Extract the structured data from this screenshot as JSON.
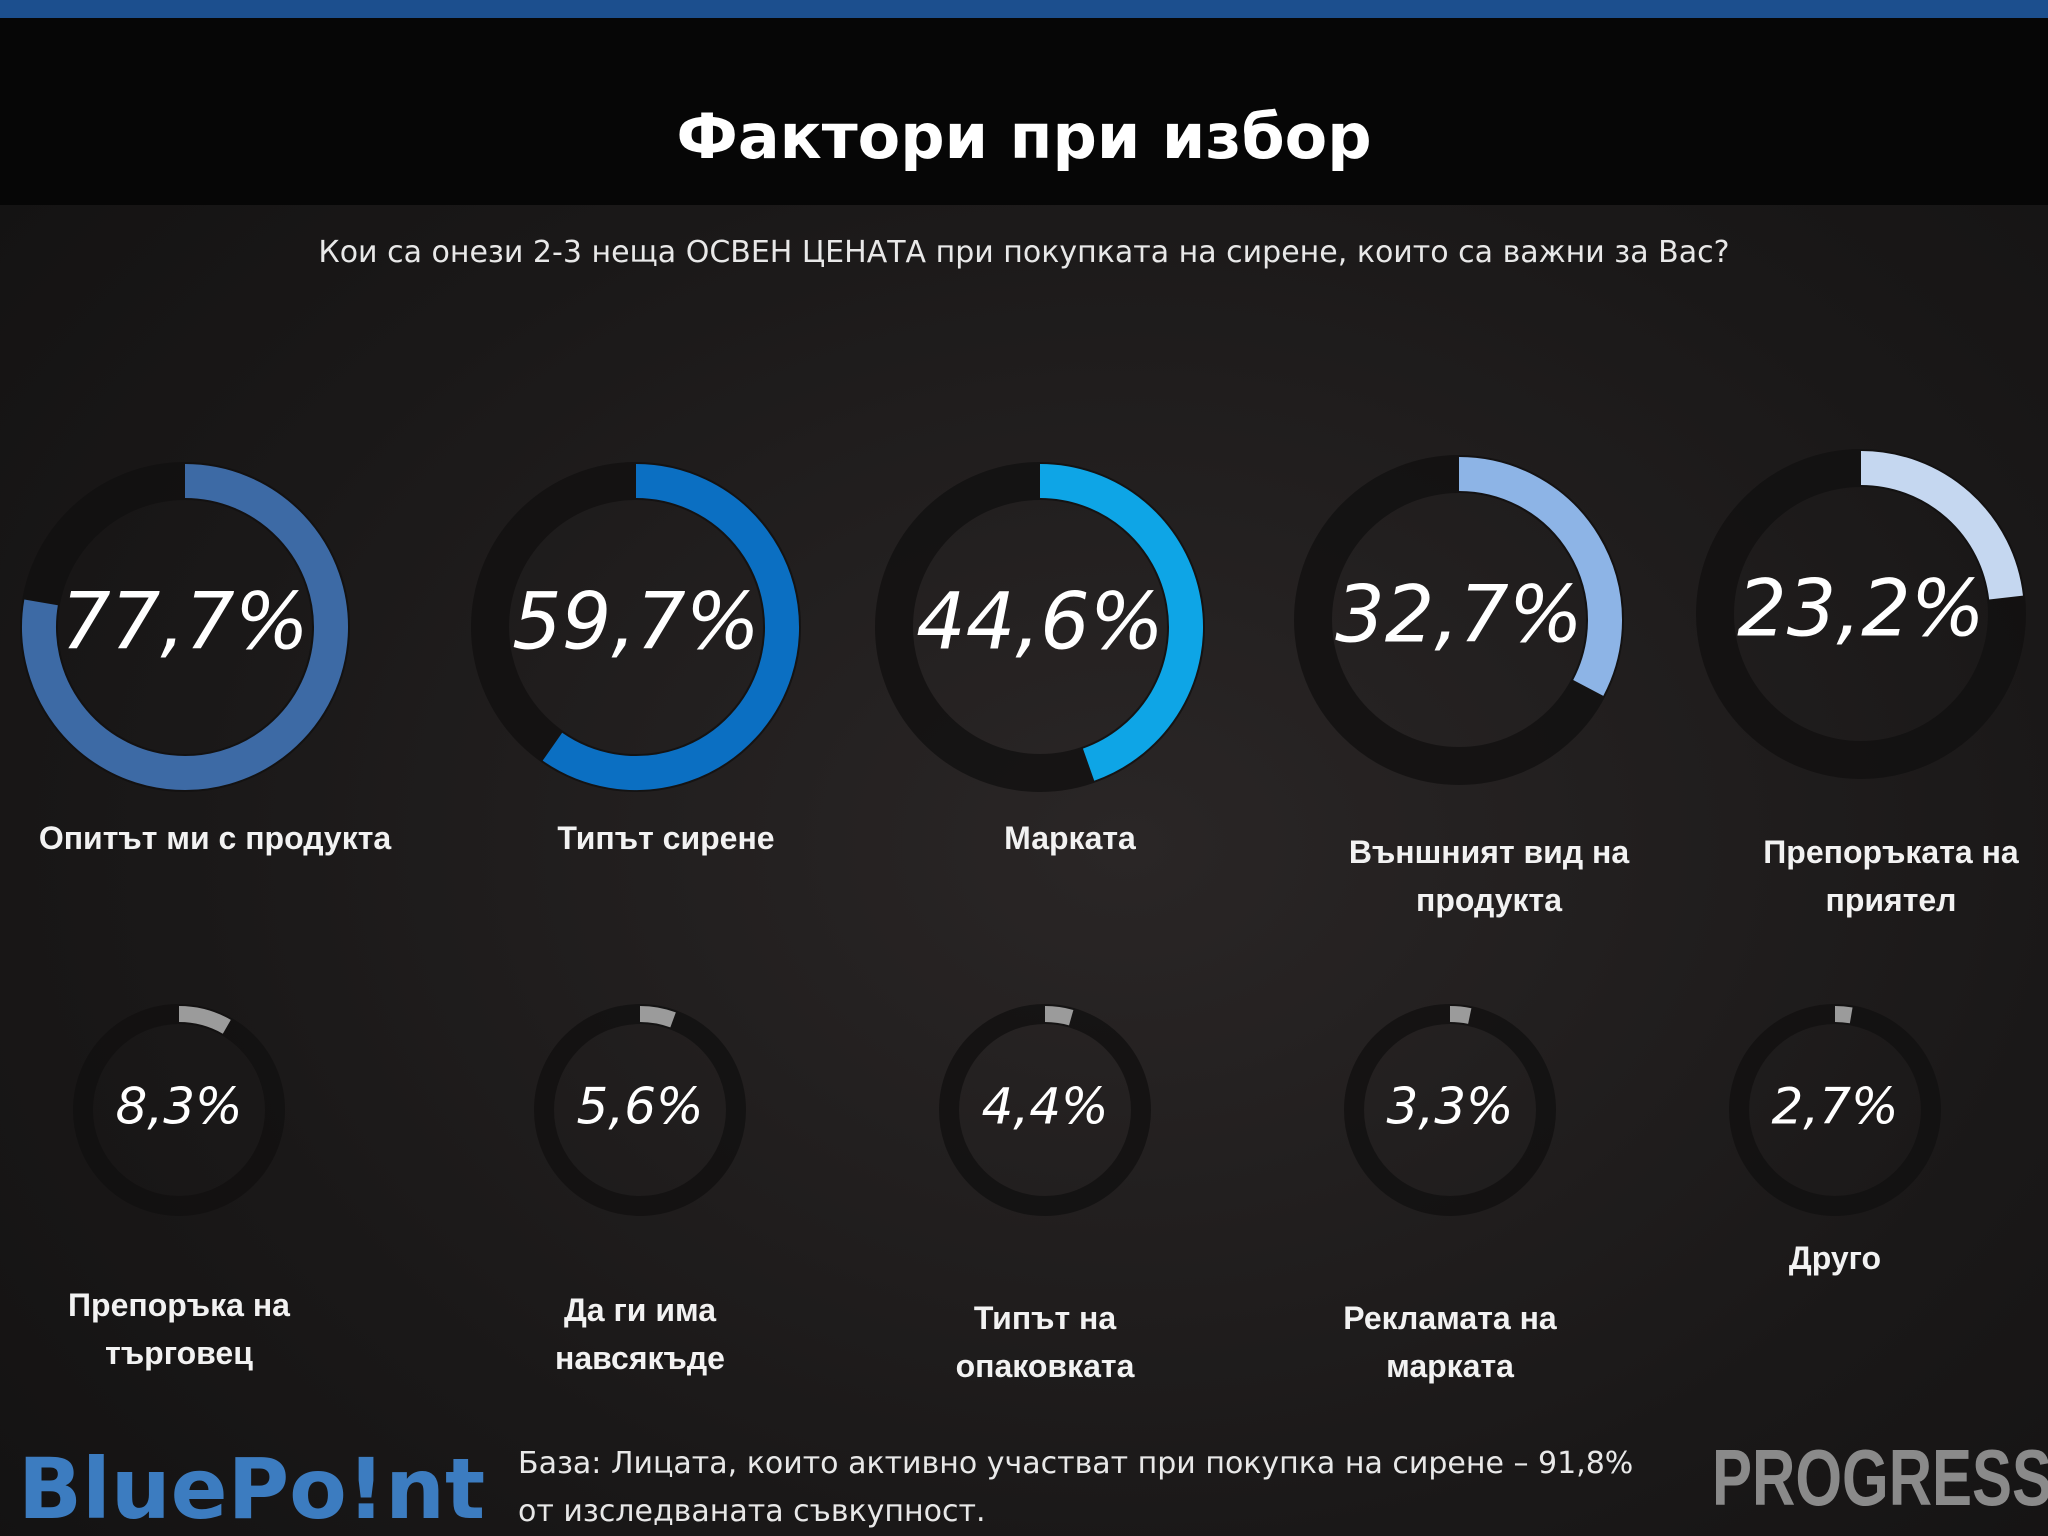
{
  "header": {
    "title": "Фактори при избор",
    "subtitle": "Кои са онези 2-3 неща ОСВЕН ЦЕНАТА при покупката на сирене, които са важни за Вас?"
  },
  "chart_data": {
    "type": "donut",
    "categories": [
      "Опитът ми с продукта",
      "Типът сирене",
      "Марката",
      "Външният вид на продукта",
      "Препоръката на приятел",
      "Препоръка на търговец",
      "Да ги има навсякъде",
      "Типът на опаковката",
      "Рекламата на марката",
      "Друго"
    ],
    "values": [
      77.7,
      59.7,
      44.6,
      32.7,
      23.2,
      8.3,
      5.6,
      4.4,
      3.3,
      2.7
    ],
    "value_labels": [
      "77,7%",
      "59,7%",
      "44,6%",
      "32,7%",
      "23,2%",
      "8,3%",
      "5,6%",
      "4,4%",
      "3,3%",
      "2,7%"
    ],
    "colors": [
      "#3d6aa5",
      "#0b6fc2",
      "#0ea5e6",
      "#8db4e6",
      "#c5d7f0",
      "#9b9b9b",
      "#9b9b9b",
      "#9b9b9b",
      "#9b9b9b",
      "#9b9b9b"
    ],
    "ylim": [
      0,
      100
    ]
  },
  "footer": {
    "note": "База: Лицата, които активно участват при покупка на сирене – 91,8% от изследваната съвкупност.",
    "logo_left": "BluePo!nt",
    "logo_right": "PROGRESSIVE"
  }
}
